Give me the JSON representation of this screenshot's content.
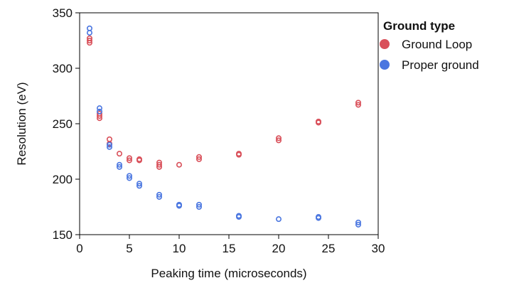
{
  "chart_data": {
    "type": "scatter",
    "title": "",
    "xlabel": "Peaking time (microseconds)",
    "ylabel": "Resolution (eV)",
    "xlim": [
      0,
      30
    ],
    "ylim": [
      150,
      350
    ],
    "xticks": [
      0,
      5,
      10,
      15,
      20,
      25,
      30
    ],
    "yticks": [
      150,
      200,
      250,
      300,
      350
    ],
    "grid": false,
    "legend": {
      "title": "Ground type",
      "placement": "right"
    },
    "series": [
      {
        "name": "Ground Loop",
        "color": "#d9505a",
        "points": [
          [
            1,
            327
          ],
          [
            1,
            325
          ],
          [
            1,
            323
          ],
          [
            2,
            259
          ],
          [
            2,
            257
          ],
          [
            2,
            255
          ],
          [
            3,
            236
          ],
          [
            3,
            232
          ],
          [
            4,
            223
          ],
          [
            5,
            219
          ],
          [
            5,
            217
          ],
          [
            6,
            218
          ],
          [
            6,
            217
          ],
          [
            8,
            215
          ],
          [
            8,
            213
          ],
          [
            8,
            211
          ],
          [
            10,
            213
          ],
          [
            12,
            220
          ],
          [
            12,
            218
          ],
          [
            16,
            223
          ],
          [
            16,
            222
          ],
          [
            20,
            237
          ],
          [
            20,
            235
          ],
          [
            24,
            252
          ],
          [
            24,
            251
          ],
          [
            28,
            269
          ],
          [
            28,
            267
          ]
        ]
      },
      {
        "name": "Proper ground",
        "color": "#4a76e0",
        "points": [
          [
            1,
            336
          ],
          [
            1,
            332
          ],
          [
            2,
            264
          ],
          [
            2,
            261
          ],
          [
            3,
            231
          ],
          [
            3,
            229
          ],
          [
            4,
            213
          ],
          [
            4,
            211
          ],
          [
            5,
            203
          ],
          [
            5,
            201
          ],
          [
            6,
            196
          ],
          [
            6,
            194
          ],
          [
            8,
            186
          ],
          [
            8,
            184
          ],
          [
            10,
            177
          ],
          [
            10,
            176
          ],
          [
            12,
            177
          ],
          [
            12,
            175
          ],
          [
            16,
            167
          ],
          [
            16,
            166
          ],
          [
            20,
            164
          ],
          [
            24,
            166
          ],
          [
            24,
            165
          ],
          [
            28,
            161
          ],
          [
            28,
            159
          ]
        ]
      }
    ]
  }
}
